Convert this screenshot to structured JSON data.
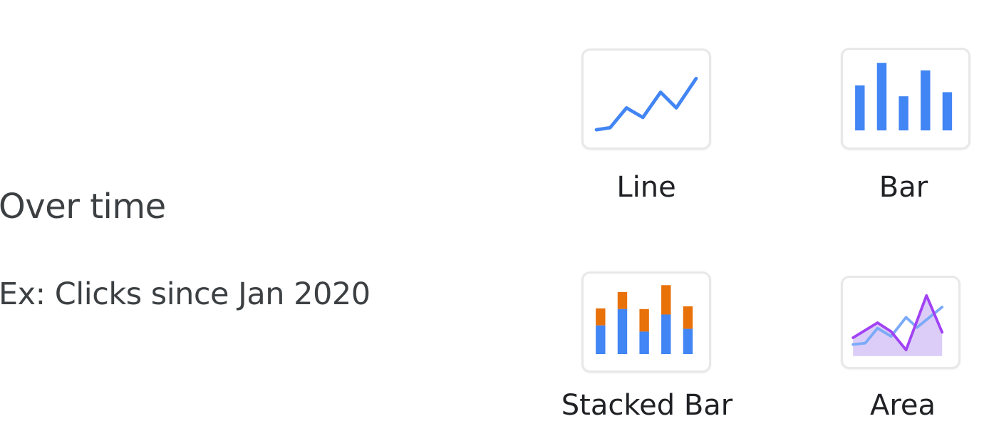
{
  "section": {
    "heading": "Over time",
    "example": "Ex: Clicks since Jan 2020"
  },
  "chart_options": [
    {
      "label": "Line",
      "icon": "line-chart-icon"
    },
    {
      "label": "Bar",
      "icon": "bar-chart-icon"
    },
    {
      "label": "Stacked Bar",
      "icon": "stacked-bar-chart-icon"
    },
    {
      "label": "Area",
      "icon": "area-chart-icon"
    }
  ],
  "colors": {
    "blue": "#4285f4",
    "orange": "#e8710a",
    "purple": "#a142f4",
    "purple_fill": "#d7c8f7",
    "light_blue": "#7baaf7",
    "text": "#3c4043",
    "tile_border": "#e8e8e8"
  }
}
